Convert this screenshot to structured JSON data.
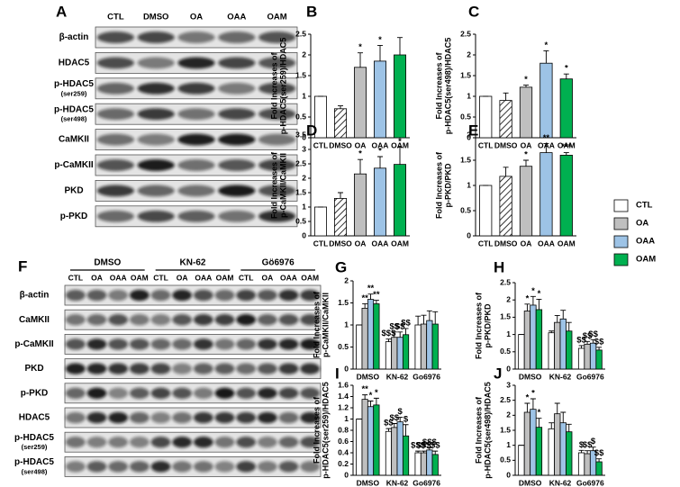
{
  "panels": {
    "A": {
      "label": "A",
      "lanes": [
        "CTL",
        "DMSO",
        "OA",
        "OAA",
        "OAM"
      ],
      "rows": [
        {
          "name": "β-actin"
        },
        {
          "name": "HDAC5"
        },
        {
          "name": "p-HDAC5",
          "detail": "(ser259)"
        },
        {
          "name": "p-HDAC5",
          "detail": "(ser498)"
        },
        {
          "name": "CaMKII"
        },
        {
          "name": "p-CaMKII"
        },
        {
          "name": "PKD"
        },
        {
          "name": "p-PKD"
        }
      ]
    },
    "F": {
      "label": "F",
      "groups": [
        "DMSO",
        "KN-62",
        "Gö6976"
      ],
      "lanes": [
        "CTL",
        "OA",
        "OAA",
        "OAM"
      ],
      "rows": [
        {
          "name": "β-actin"
        },
        {
          "name": "CaMKII"
        },
        {
          "name": "p-CaMKII"
        },
        {
          "name": "PKD"
        },
        {
          "name": "p-PKD"
        },
        {
          "name": "HDAC5"
        },
        {
          "name": "p-HDAC5",
          "detail": "(ser259)"
        },
        {
          "name": "p-HDAC5",
          "detail": "(ser498)"
        }
      ]
    }
  },
  "chart_data": [
    {
      "type": "bar",
      "label": "B",
      "ylabel": [
        "Fold Increases of",
        "p-HDAC5(ser259)/HDAC5"
      ],
      "categories": [
        "CTL",
        "DMSO",
        "OA",
        "OAA",
        "OAM"
      ],
      "values": [
        1,
        0.7,
        1.7,
        1.85,
        2.0
      ],
      "errors": [
        0,
        0.07,
        0.35,
        0.38,
        0.42
      ],
      "marks": [
        null,
        null,
        "*",
        "*",
        null
      ],
      "colors": [
        "#ffffff",
        "#ffffff",
        "#bfbfbf",
        "#9dc3e6",
        "#00b050"
      ],
      "hatched": [
        false,
        true,
        false,
        false,
        false
      ],
      "ylim": [
        0,
        2.5
      ],
      "yticks": [
        0,
        0.5,
        1,
        1.5,
        2,
        2.5
      ]
    },
    {
      "type": "bar",
      "label": "C",
      "ylabel": [
        "Fold Increases of",
        "p-HDAC5(ser498)/HDAC5"
      ],
      "categories": [
        "CTL",
        "DMSO",
        "OA",
        "OAA",
        "OAM"
      ],
      "values": [
        1,
        0.9,
        1.22,
        1.8,
        1.42
      ],
      "errors": [
        0,
        0.18,
        0.05,
        0.3,
        0.12
      ],
      "marks": [
        null,
        null,
        "*",
        "*",
        "*"
      ],
      "colors": [
        "#ffffff",
        "#ffffff",
        "#bfbfbf",
        "#9dc3e6",
        "#00b050"
      ],
      "hatched": [
        false,
        true,
        false,
        false,
        false
      ],
      "ylim": [
        0,
        2.5
      ],
      "yticks": [
        0,
        0.5,
        1,
        1.5,
        2,
        2.5
      ]
    },
    {
      "type": "bar",
      "label": "D",
      "ylabel": [
        "Fold Increases of",
        "p-CaMKII/CaMKII"
      ],
      "categories": [
        "CTL",
        "DMSO",
        "OA",
        "OAA",
        "OAM"
      ],
      "values": [
        1,
        1.3,
        2.15,
        2.35,
        2.48
      ],
      "errors": [
        0,
        0.2,
        0.5,
        0.4,
        0.6
      ],
      "marks": [
        null,
        null,
        "*",
        "*",
        "*"
      ],
      "colors": [
        "#ffffff",
        "#ffffff",
        "#bfbfbf",
        "#9dc3e6",
        "#00b050"
      ],
      "hatched": [
        false,
        true,
        false,
        false,
        false
      ],
      "ylim": [
        0,
        3.5
      ],
      "yticks": [
        0,
        0.5,
        1,
        1.5,
        2,
        2.5,
        3,
        3.5
      ]
    },
    {
      "type": "bar",
      "label": "E",
      "ylabel": [
        "Fold Increases of",
        "p-PKD/PKD"
      ],
      "categories": [
        "CTL",
        "DMSO",
        "OA",
        "OAA",
        "OAM"
      ],
      "values": [
        1,
        1.18,
        1.38,
        1.65,
        1.6
      ],
      "errors": [
        0,
        0.18,
        0.12,
        0.18,
        0.05
      ],
      "marks": [
        null,
        null,
        "*",
        "**",
        "***"
      ],
      "colors": [
        "#ffffff",
        "#ffffff",
        "#bfbfbf",
        "#9dc3e6",
        "#00b050"
      ],
      "hatched": [
        false,
        true,
        false,
        false,
        false
      ],
      "ylim": [
        0,
        2
      ],
      "yticks": [
        0,
        0.5,
        1,
        1.5,
        2
      ]
    },
    {
      "type": "bar",
      "label": "G",
      "ylabel": [
        "Fold Increases of",
        "p-CaMKII/CaMKII"
      ],
      "legend": true,
      "categories": [
        "DMSO",
        "KN-62",
        "Go6976"
      ],
      "series": [
        {
          "name": "CTL",
          "color": "#ffffff",
          "values": [
            1,
            0.62,
            1.0
          ],
          "errors": [
            0,
            0.06,
            0.2
          ],
          "marks": [
            null,
            "$$$",
            null
          ]
        },
        {
          "name": "OA",
          "color": "#bfbfbf",
          "values": [
            1.38,
            0.72,
            1.02
          ],
          "errors": [
            0.1,
            0.12,
            0.2
          ],
          "marks": [
            "**",
            "$$",
            null
          ]
        },
        {
          "name": "OAA",
          "color": "#9dc3e6",
          "values": [
            1.58,
            0.72,
            1.1
          ],
          "errors": [
            0.12,
            0.12,
            0.22
          ],
          "marks": [
            "**",
            "$$",
            null
          ]
        },
        {
          "name": "OAM",
          "color": "#00b050",
          "values": [
            1.48,
            0.78,
            1.02
          ],
          "errors": [
            0.08,
            0.14,
            0.28
          ],
          "marks": [
            "**",
            "$$",
            null
          ]
        }
      ],
      "ylim": [
        0,
        2
      ],
      "yticks": [
        0,
        0.5,
        1,
        1.5,
        2
      ]
    },
    {
      "type": "bar",
      "label": "H",
      "ylabel": [
        "Fold Increases of",
        "p-PKD/PKD"
      ],
      "categories": [
        "DMSO",
        "KN-62",
        "Go6976"
      ],
      "series": [
        {
          "name": "CTL",
          "color": "#ffffff",
          "values": [
            1,
            1.05,
            0.6
          ],
          "errors": [
            0,
            0.05,
            0.08
          ],
          "marks": [
            null,
            null,
            "$$"
          ]
        },
        {
          "name": "OA",
          "color": "#bfbfbf",
          "values": [
            1.68,
            1.35,
            0.72
          ],
          "errors": [
            0.2,
            0.2,
            0.08
          ],
          "marks": [
            "*",
            null,
            "$$"
          ]
        },
        {
          "name": "OAA",
          "color": "#9dc3e6",
          "values": [
            1.85,
            1.45,
            0.75
          ],
          "errors": [
            0.25,
            0.25,
            0.1
          ],
          "marks": [
            "*",
            null,
            "$$"
          ]
        },
        {
          "name": "OAM",
          "color": "#00b050",
          "values": [
            1.72,
            1.1,
            0.55
          ],
          "errors": [
            0.3,
            0.25,
            0.08
          ],
          "marks": [
            "*",
            null,
            "$$"
          ]
        }
      ],
      "ylim": [
        0,
        2.5
      ],
      "yticks": [
        0,
        0.5,
        1,
        1.5,
        2,
        2.5
      ]
    },
    {
      "type": "bar",
      "label": "I",
      "ylabel": [
        "Fold Increases of",
        "p-HDAC5(ser259)/HDAC5"
      ],
      "categories": [
        "DMSO",
        "KN-62",
        "Go6976"
      ],
      "series": [
        {
          "name": "CTL",
          "color": "#ffffff",
          "values": [
            1,
            0.78,
            0.4
          ],
          "errors": [
            0,
            0.05,
            0.03
          ],
          "marks": [
            null,
            "$$",
            "$$$"
          ]
        },
        {
          "name": "OA",
          "color": "#bfbfbf",
          "values": [
            1.35,
            0.85,
            0.4
          ],
          "errors": [
            0.08,
            0.07,
            0.03
          ],
          "marks": [
            "**",
            "$$",
            "$$$"
          ]
        },
        {
          "name": "OAA",
          "color": "#9dc3e6",
          "values": [
            1.22,
            0.95,
            0.45
          ],
          "errors": [
            0.1,
            0.08,
            0.04
          ],
          "marks": [
            "*",
            "$",
            "$$$"
          ]
        },
        {
          "name": "OAM",
          "color": "#00b050",
          "values": [
            1.25,
            0.7,
            0.37
          ],
          "errors": [
            0.12,
            0.2,
            0.06
          ],
          "marks": [
            "*",
            "$",
            "$$"
          ]
        }
      ],
      "ylim": [
        0,
        1.6
      ],
      "yticks": [
        0,
        0.2,
        0.4,
        0.6,
        0.8,
        1,
        1.2,
        1.4,
        1.6
      ]
    },
    {
      "type": "bar",
      "label": "J",
      "ylabel": [
        "Fold Increases of",
        "p-HDAC5(ser498)/HDAC5"
      ],
      "categories": [
        "DMSO",
        "KN-62",
        "Go6976"
      ],
      "series": [
        {
          "name": "CTL",
          "color": "#ffffff",
          "values": [
            1,
            1.55,
            0.75
          ],
          "errors": [
            0,
            0.2,
            0.08
          ],
          "marks": [
            null,
            null,
            "$"
          ]
        },
        {
          "name": "OA",
          "color": "#bfbfbf",
          "values": [
            2.1,
            2.05,
            0.72
          ],
          "errors": [
            0.3,
            0.35,
            0.1
          ],
          "marks": [
            "*",
            null,
            "$$"
          ]
        },
        {
          "name": "OAA",
          "color": "#9dc3e6",
          "values": [
            2.2,
            1.75,
            0.82
          ],
          "errors": [
            0.35,
            0.35,
            0.12
          ],
          "marks": [
            "*",
            null,
            "$"
          ]
        },
        {
          "name": "OAM",
          "color": "#00b050",
          "values": [
            1.6,
            1.45,
            0.45
          ],
          "errors": [
            0.3,
            0.25,
            0.1
          ],
          "marks": [
            "*",
            null,
            "$$"
          ]
        }
      ],
      "ylim": [
        0,
        3
      ],
      "yticks": [
        0,
        0.5,
        1,
        1.5,
        2,
        2.5,
        3
      ]
    }
  ]
}
